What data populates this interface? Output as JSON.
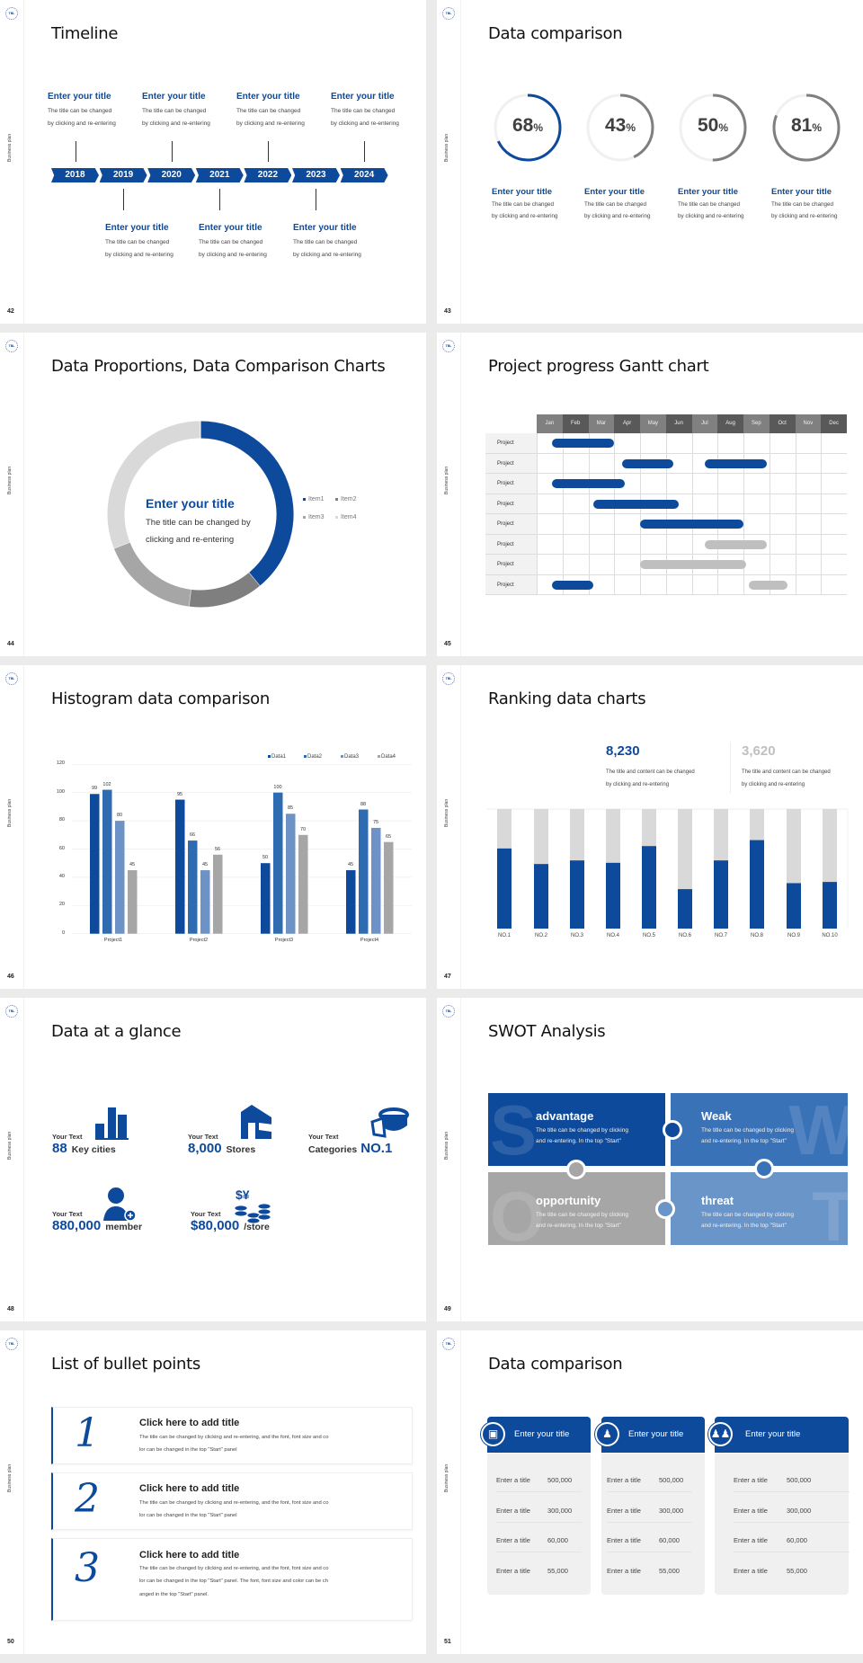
{
  "common": {
    "sidebar_label": "Business plan",
    "logo_text": "TBL",
    "brand_color": "#0d4a9b"
  },
  "timeline": {
    "page": "42",
    "title": "Timeline",
    "years": [
      "2018",
      "2019",
      "2020",
      "2021",
      "2022",
      "2023",
      "2024"
    ],
    "top_items": [
      {
        "title": "Enter your title",
        "line1": "The title can be changed",
        "line2": "by clicking and re-entering"
      },
      {
        "title": "Enter your title",
        "line1": "The title can be changed",
        "line2": "by clicking and re-entering"
      },
      {
        "title": "Enter your title",
        "line1": "The title can be changed",
        "line2": "by clicking and re-entering"
      },
      {
        "title": "Enter your title",
        "line1": "The title can be changed",
        "line2": "by clicking and re-entering"
      }
    ],
    "bottom_items": [
      {
        "title": "Enter your title",
        "line1": "The title can be changed",
        "line2": "by clicking and re-entering"
      },
      {
        "title": "Enter your title",
        "line1": "The title can be changed",
        "line2": "by clicking and re-entering"
      },
      {
        "title": "Enter your title",
        "line1": "The title can be changed",
        "line2": "by clicking and re-entering"
      }
    ]
  },
  "rings": {
    "page": "43",
    "title": "Data comparison",
    "items": [
      {
        "value": "68",
        "unit": "%",
        "percent": 68,
        "color": "#0d4a9b",
        "title": "Enter your title",
        "line1": "The title can be changed",
        "line2": "by clicking and re-entering"
      },
      {
        "value": "43",
        "unit": "%",
        "percent": 43,
        "color": "#7f7f7f",
        "title": "Enter your title",
        "line1": "The title can be changed",
        "line2": "by clicking and re-entering"
      },
      {
        "value": "50",
        "unit": "%",
        "percent": 50,
        "color": "#7f7f7f",
        "title": "Enter your title",
        "line1": "The title can be changed",
        "line2": "by clicking and re-entering"
      },
      {
        "value": "81",
        "unit": "%",
        "percent": 81,
        "color": "#7f7f7f",
        "title": "Enter your title",
        "line1": "The title can be changed",
        "line2": "by clicking and re-entering"
      }
    ]
  },
  "donut": {
    "page": "44",
    "title": "Data Proportions, Data Comparison Charts",
    "center_title": "Enter your title",
    "center_line1": "The title can be changed by",
    "center_line2": "clicking and re-entering"
  },
  "gantt": {
    "page": "45",
    "title": "Project progress Gantt chart",
    "months": [
      "Jan",
      "Feb",
      "Mar",
      "Apr",
      "May",
      "Jun",
      "Jul",
      "Aug",
      "Sep",
      "Oct",
      "Nov",
      "Dec"
    ],
    "rows": [
      {
        "label": "Project",
        "bars": [
          {
            "start": 0.6,
            "end": 3.0,
            "color": "#0d4a9b"
          }
        ]
      },
      {
        "label": "Project",
        "bars": [
          {
            "start": 3.3,
            "end": 5.3,
            "color": "#0d4a9b"
          },
          {
            "start": 6.5,
            "end": 8.9,
            "color": "#0d4a9b"
          }
        ]
      },
      {
        "label": "Project",
        "bars": [
          {
            "start": 0.6,
            "end": 3.4,
            "color": "#0d4a9b"
          }
        ]
      },
      {
        "label": "Project",
        "bars": [
          {
            "start": 2.2,
            "end": 5.5,
            "color": "#0d4a9b"
          }
        ]
      },
      {
        "label": "Project",
        "bars": [
          {
            "start": 4.0,
            "end": 8.0,
            "color": "#0d4a9b"
          }
        ]
      },
      {
        "label": "Project",
        "bars": [
          {
            "start": 6.5,
            "end": 8.9,
            "color": "#bfbfbf"
          }
        ]
      },
      {
        "label": "Project",
        "bars": [
          {
            "start": 4.0,
            "end": 8.1,
            "color": "#bfbfbf"
          }
        ]
      },
      {
        "label": "Project",
        "bars": [
          {
            "start": 0.6,
            "end": 2.2,
            "color": "#0d4a9b"
          },
          {
            "start": 8.2,
            "end": 9.7,
            "color": "#bfbfbf"
          }
        ]
      }
    ]
  },
  "histogram": {
    "page": "46",
    "title": "Histogram data comparison"
  },
  "ranking": {
    "page": "47",
    "title": "Ranking data charts",
    "stat1": {
      "value": "8,230",
      "line1": "The title and content can be changed",
      "line2": "by clicking and re-entering"
    },
    "stat2": {
      "value": "3,620",
      "line1": "The title and content can be changed",
      "line2": "by clicking and re-entering"
    }
  },
  "glance": {
    "page": "48",
    "title": "Data at a glance",
    "items": [
      {
        "label": "Your Text",
        "number": "88",
        "suffix": "Key cities",
        "icon": "city-buildings-icon"
      },
      {
        "label": "Your Text",
        "number": "8,000",
        "suffix": "Stores",
        "icon": "store-icon"
      },
      {
        "label": "Your Text",
        "prefix": "Categories",
        "number": "NO.1",
        "icon": "pie-chart-3d-icon"
      },
      {
        "label": "Your Text",
        "number": "880,000",
        "suffix": "member",
        "icon": "add-member-icon"
      },
      {
        "label": "Your Text",
        "number": "$80,000",
        "suffix": "/store",
        "icon": "coins-icon"
      }
    ]
  },
  "swot": {
    "page": "49",
    "title": "SWOT Analysis",
    "items": [
      {
        "letter": "S",
        "title": "advantage",
        "line1": "The title can be changed by clicking",
        "line2": "and re-entering. In the top \"Start\"",
        "color": "#0d4a9b"
      },
      {
        "letter": "W",
        "title": "Weak",
        "line1": "The title can be changed by clicking",
        "line2": "and re-entering. In the top \"Start\"",
        "color": "#3a72b8"
      },
      {
        "letter": "O",
        "title": "opportunity",
        "line1": "The title can be changed by clicking",
        "line2": "and re-entering. In the top \"Start\"",
        "color": "#a6a6a6"
      },
      {
        "letter": "T",
        "title": "threat",
        "line1": "The title can be changed by clicking",
        "line2": "and re-entering. In the top \"Start\"",
        "color": "#6a95c9"
      }
    ]
  },
  "bullets": {
    "page": "50",
    "title": "List of bullet points",
    "items": [
      {
        "num": "1",
        "title": "Click here to add title",
        "lines": [
          "The title can be changed by clicking and re-entering, and the font, font size and co",
          "lor can be changed in the top \"Start\" panel"
        ]
      },
      {
        "num": "2",
        "title": "Click here to add title",
        "lines": [
          "The title can be changed by clicking and re-entering, and the font, font size and co",
          "lor can be changed in the top \"Start\" panel"
        ]
      },
      {
        "num": "3",
        "title": "Click here to add title",
        "lines": [
          "The title can be changed by clicking and re-entering, and the font, font size and co",
          "lor can be changed in the top \"Start\" panel. The font, font size and color can be ch",
          "anged in the top \"Start\" panel."
        ]
      }
    ]
  },
  "tables": {
    "page": "51",
    "title": "Data comparison",
    "cards": [
      {
        "header": "Enter your title",
        "icon": "id-card-add-icon",
        "rows": [
          {
            "label": "Enter a title",
            "value": "500,000"
          },
          {
            "label": "Enter a title",
            "value": "300,000"
          },
          {
            "label": "Enter a title",
            "value": "60,000"
          },
          {
            "label": "Enter a title",
            "value": "55,000"
          }
        ]
      },
      {
        "header": "Enter your title",
        "icon": "user-add-icon",
        "rows": [
          {
            "label": "Enter a title",
            "value": "500,000"
          },
          {
            "label": "Enter a title",
            "value": "300,000"
          },
          {
            "label": "Enter a title",
            "value": "60,000"
          },
          {
            "label": "Enter a title",
            "value": "55,000"
          }
        ]
      },
      {
        "header": "Enter your title",
        "icon": "user-group-icon",
        "rows": [
          {
            "label": "Enter a title",
            "value": "500,000"
          },
          {
            "label": "Enter a title",
            "value": "300,000"
          },
          {
            "label": "Enter a title",
            "value": "60,000"
          },
          {
            "label": "Enter a title",
            "value": "55,000"
          }
        ]
      }
    ]
  },
  "chart_data": [
    {
      "type": "pie",
      "variant": "donut",
      "categories": [
        "Item1",
        "Item2",
        "Item3",
        "Item4"
      ],
      "values": [
        39,
        13,
        17,
        31
      ],
      "colors": [
        "#0d4a9b",
        "#7f7f7f",
        "#a6a6a6",
        "#d9d9d9"
      ],
      "legend": "right"
    },
    {
      "type": "bar",
      "categories": [
        "Project1",
        "Project2",
        "Project3",
        "Project4"
      ],
      "series": [
        {
          "name": "Data1",
          "values": [
            99,
            95,
            50,
            45
          ],
          "color": "#0d4a9b"
        },
        {
          "name": "Data2",
          "values": [
            102,
            66,
            100,
            88
          ],
          "color": "#2f6bb0"
        },
        {
          "name": "Data3",
          "values": [
            80,
            45,
            85,
            75
          ],
          "color": "#6d93c6"
        },
        {
          "name": "Data4",
          "values": [
            45,
            56,
            70,
            65
          ],
          "color": "#a6a6a6"
        }
      ],
      "ylim": [
        0,
        120
      ],
      "yticks": [
        "0",
        "20",
        "40",
        "60",
        "80",
        "100",
        "120"
      ],
      "grid": true,
      "legend": "top-right",
      "data_labels": true
    },
    {
      "type": "bar",
      "variant": "stacked-percent",
      "categories": [
        "NO.1",
        "NO.2",
        "NO.3",
        "NO.4",
        "NO.5",
        "NO.6",
        "NO.7",
        "NO.8",
        "NO.9",
        "NO.10"
      ],
      "values": [
        67,
        54,
        57,
        55,
        69,
        33,
        57,
        74,
        38,
        39
      ],
      "ylim": [
        0,
        100
      ],
      "colors": [
        "#0d4a9b",
        "#d9d9d9"
      ]
    }
  ]
}
